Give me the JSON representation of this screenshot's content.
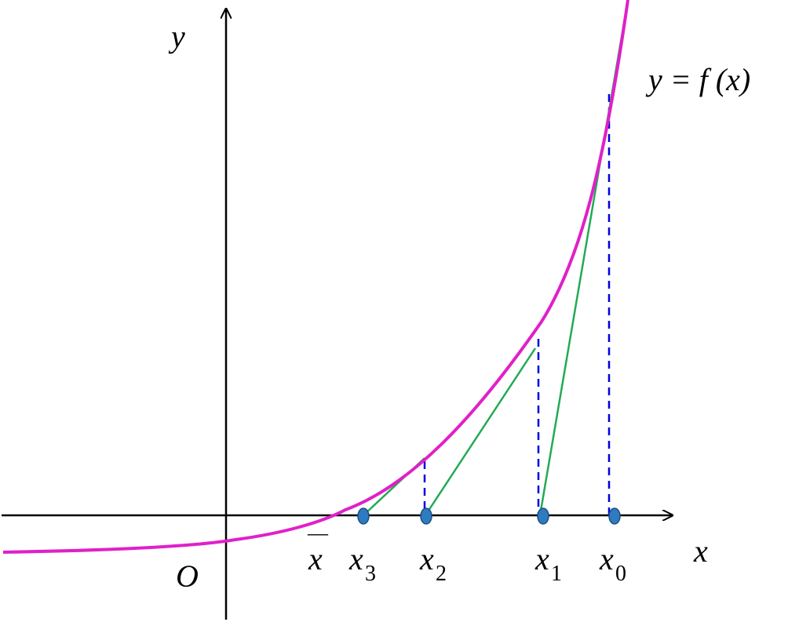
{
  "colors": {
    "curve": "#e020c8",
    "tangent": "#22aa55",
    "dashed": "#0000dd",
    "point": "#2e7bc0",
    "point_stroke": "#1b4f85",
    "axis": "#000000"
  },
  "labels": {
    "y_axis": "y",
    "x_axis": "x",
    "origin": "O",
    "curve": "y = f (x)",
    "root_bar": "—",
    "root": "x"
  },
  "points": [
    {
      "base": "x",
      "sub": "3"
    },
    {
      "base": "x",
      "sub": "2"
    },
    {
      "base": "x",
      "sub": "1"
    },
    {
      "base": "x",
      "sub": "0"
    }
  ]
}
